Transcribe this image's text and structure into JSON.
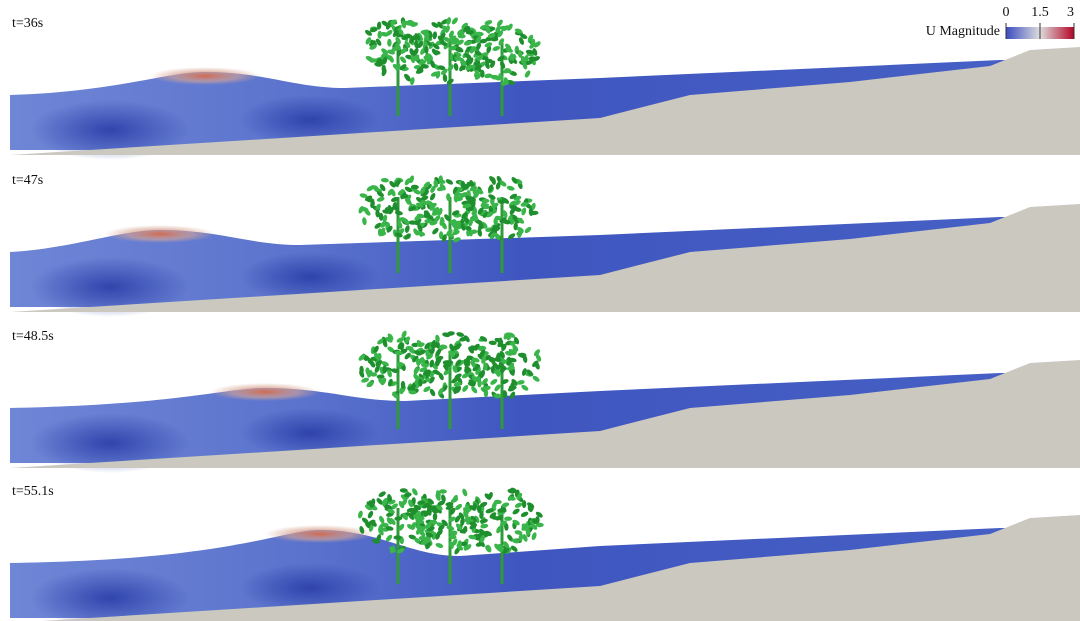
{
  "panels": [
    {
      "label": "t=36s"
    },
    {
      "label": "t=47s"
    },
    {
      "label": "t=48.5s"
    },
    {
      "label": "t=55.1s"
    }
  ],
  "colorbar": {
    "title": "U Magnitude",
    "range": [
      0,
      3
    ],
    "ticks": [
      0,
      1.5,
      3
    ]
  }
}
